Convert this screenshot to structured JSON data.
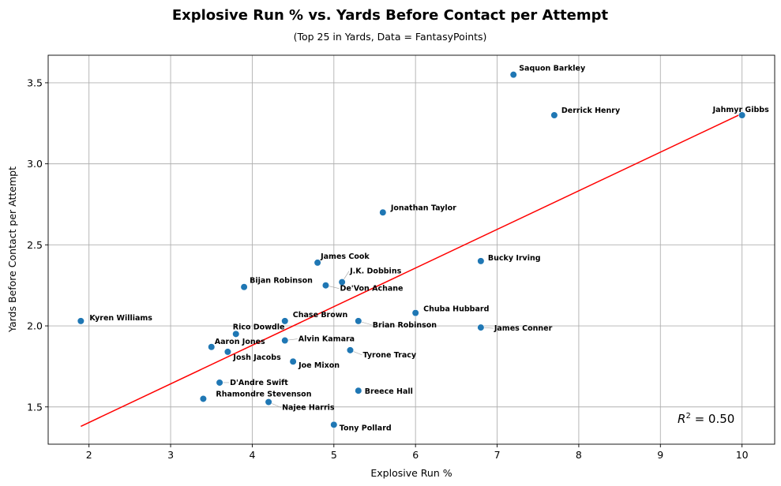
{
  "chart_data": {
    "type": "scatter",
    "title": "Explosive Run % vs. Yards Before Contact per Attempt",
    "subtitle": "(Top 25 in Yards, Data = FantasyPoints)",
    "xlabel": "Explosive Run %",
    "ylabel": "Yards Before Contact per Attempt",
    "xlim": [
      1.5,
      10.4
    ],
    "ylim": [
      1.27,
      3.67
    ],
    "x_ticks": [
      2,
      3,
      4,
      5,
      6,
      7,
      8,
      9,
      10
    ],
    "y_ticks": [
      1.5,
      2.0,
      2.5,
      3.0,
      3.5
    ],
    "grid": true,
    "point_color": "#1f77b4",
    "trend_color": "#ff0000",
    "trendline": {
      "x": [
        1.9,
        10.0
      ],
      "y": [
        1.38,
        3.31
      ]
    },
    "r_squared_text": "0.50",
    "points": [
      {
        "name": "Saquon Barkley",
        "x": 7.2,
        "y": 3.55
      },
      {
        "name": "Derrick Henry",
        "x": 7.7,
        "y": 3.3
      },
      {
        "name": "Jahmyr Gibbs",
        "x": 10.0,
        "y": 3.3
      },
      {
        "name": "Jonathan Taylor",
        "x": 5.6,
        "y": 2.7
      },
      {
        "name": "Bucky Irving",
        "x": 6.8,
        "y": 2.4
      },
      {
        "name": "James Cook",
        "x": 4.8,
        "y": 2.39
      },
      {
        "name": "J.K. Dobbins",
        "x": 5.1,
        "y": 2.27
      },
      {
        "name": "Bijan Robinson",
        "x": 3.9,
        "y": 2.24
      },
      {
        "name": "De'Von Achane",
        "x": 4.9,
        "y": 2.25
      },
      {
        "name": "Chuba Hubbard",
        "x": 6.0,
        "y": 2.08
      },
      {
        "name": "Kyren Williams",
        "x": 1.9,
        "y": 2.03
      },
      {
        "name": "Chase Brown",
        "x": 4.4,
        "y": 2.03
      },
      {
        "name": "Brian Robinson",
        "x": 5.3,
        "y": 2.03
      },
      {
        "name": "James Conner",
        "x": 6.8,
        "y": 1.99
      },
      {
        "name": "Rico Dowdle",
        "x": 3.8,
        "y": 1.95
      },
      {
        "name": "Alvin Kamara",
        "x": 4.4,
        "y": 1.91
      },
      {
        "name": "Aaron Jones",
        "x": 3.5,
        "y": 1.87
      },
      {
        "name": "Josh Jacobs",
        "x": 3.7,
        "y": 1.84
      },
      {
        "name": "Tyrone Tracy",
        "x": 5.2,
        "y": 1.85
      },
      {
        "name": "Joe Mixon",
        "x": 4.5,
        "y": 1.78
      },
      {
        "name": "D'Andre Swift",
        "x": 3.6,
        "y": 1.65
      },
      {
        "name": "Breece Hall",
        "x": 5.3,
        "y": 1.6
      },
      {
        "name": "Rhamondre Stevenson",
        "x": 3.4,
        "y": 1.55
      },
      {
        "name": "Najee Harris",
        "x": 4.2,
        "y": 1.53
      },
      {
        "name": "Tony Pollard",
        "x": 5.0,
        "y": 1.39
      }
    ]
  }
}
